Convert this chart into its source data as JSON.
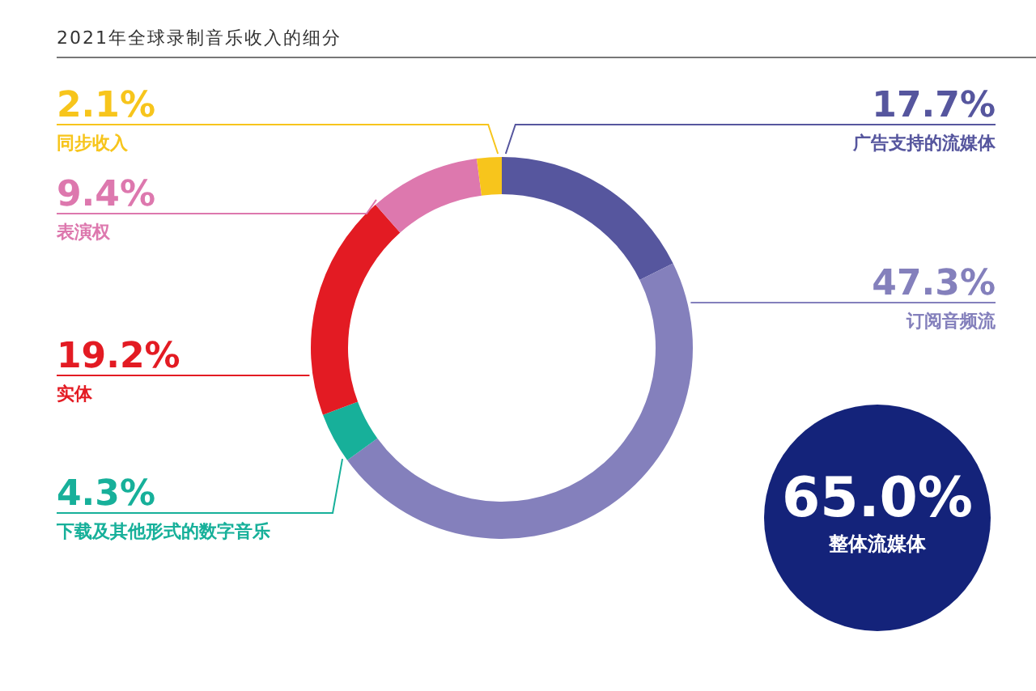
{
  "chart_data": {
    "type": "donut",
    "title": "2021年全球录制音乐收入的细分",
    "categories": [
      "广告支持的流媒体",
      "订阅音频流",
      "下载及其他形式的数字音乐",
      "实体",
      "表演权",
      "同步收入"
    ],
    "values": [
      17.7,
      47.3,
      4.3,
      19.2,
      9.4,
      2.1
    ],
    "colors": [
      "#56569e",
      "#8480bc",
      "#17b09a",
      "#e31b23",
      "#dd78ae",
      "#f7c51c"
    ],
    "value_labels": [
      "17.7%",
      "47.3%",
      "4.3%",
      "19.2%",
      "9.4%",
      "2.1%"
    ],
    "annotations": [
      "65.0%",
      "整体流媒体"
    ]
  }
}
